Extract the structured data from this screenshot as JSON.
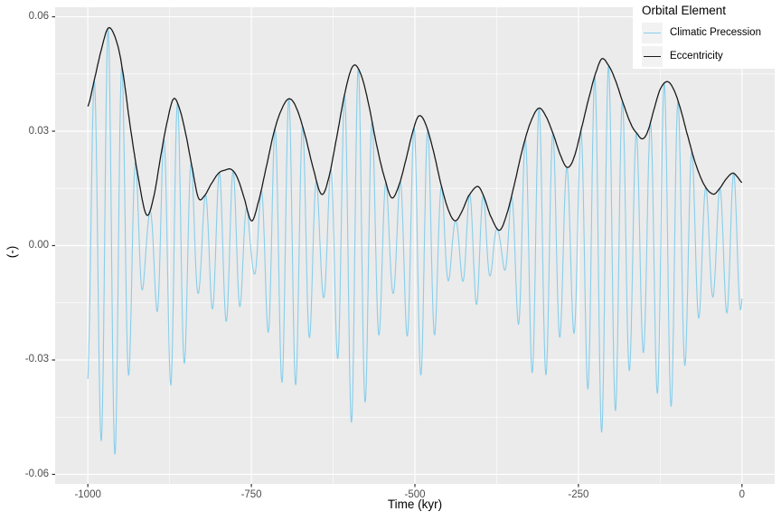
{
  "legend": {
    "title": "Orbital Element",
    "items": [
      {
        "label": "Climatic Precession",
        "color": "#87CEEB"
      },
      {
        "label": "Eccentricity",
        "color": "#1a1a1a"
      }
    ]
  },
  "axes": {
    "x": {
      "title": "Time (kyr)",
      "tick_labels": [
        "-1000",
        "-750",
        "-500",
        "-250",
        "0"
      ],
      "tick_values": [
        -1000,
        -750,
        -500,
        -250,
        0
      ],
      "minor_tick_values": [
        -875,
        -625,
        -375,
        -125
      ],
      "range": [
        -1050,
        50
      ]
    },
    "y": {
      "title": "(-)",
      "tick_labels": [
        "0.06",
        "0.03",
        "0.00",
        "-0.03",
        "-0.06"
      ],
      "tick_values": [
        0.06,
        0.03,
        0,
        -0.03,
        -0.06
      ],
      "minor_tick_values": [
        0.045,
        0.015,
        -0.015,
        -0.045
      ],
      "range": [
        -0.0625,
        0.0625
      ]
    }
  },
  "colors": {
    "panel_background": "#EBEBEB",
    "grid_major": "#FFFFFF",
    "grid_minor": "#FFFFFF",
    "tick_mark": "#333333",
    "axis_text": "#4d4d4d",
    "precession_line": "#87CEEB",
    "eccentricity_line": "#1a1a1a",
    "legend_key_background": "#f2f2f2"
  },
  "chart_data": {
    "type": "line",
    "title": "",
    "xlabel": "Time (kyr)",
    "ylabel": "(-)",
    "xlim": [
      -1050,
      50
    ],
    "ylim": [
      -0.0625,
      0.0625
    ],
    "grid": true,
    "legend_position": "top-right-inside",
    "series": [
      {
        "name": "Climatic Precession",
        "color": "#87CEEB",
        "x_range_kyr": [
          -1000,
          0
        ],
        "derivation": "eccentricity_envelope(t) * sin(2*pi*t/period_kyr + phase_rad)",
        "period_kyr": 21.255,
        "phase_rad": -0.98,
        "amplitude_range": [
          -0.057,
          0.057
        ]
      },
      {
        "name": "Eccentricity",
        "color": "#1a1a1a",
        "points": [
          [
            -1000,
            0.0365
          ],
          [
            -990,
            0.0435
          ],
          [
            -980,
            0.051
          ],
          [
            -969,
            0.057
          ],
          [
            -958,
            0.0545
          ],
          [
            -948,
            0.047
          ],
          [
            -935,
            0.031
          ],
          [
            -922,
            0.017
          ],
          [
            -910,
            0.008
          ],
          [
            -899,
            0.013
          ],
          [
            -888,
            0.024
          ],
          [
            -878,
            0.033
          ],
          [
            -869,
            0.0385
          ],
          [
            -860,
            0.036
          ],
          [
            -850,
            0.029
          ],
          [
            -840,
            0.02
          ],
          [
            -831,
            0.0125
          ],
          [
            -822,
            0.013
          ],
          [
            -812,
            0.016
          ],
          [
            -800,
            0.019
          ],
          [
            -790,
            0.0198
          ],
          [
            -781,
            0.02
          ],
          [
            -772,
            0.018
          ],
          [
            -762,
            0.013
          ],
          [
            -750,
            0.0065
          ],
          [
            -740,
            0.011
          ],
          [
            -728,
            0.02
          ],
          [
            -715,
            0.03
          ],
          [
            -703,
            0.036
          ],
          [
            -692,
            0.0385
          ],
          [
            -681,
            0.036
          ],
          [
            -668,
            0.029
          ],
          [
            -655,
            0.02
          ],
          [
            -643,
            0.0135
          ],
          [
            -633,
            0.017
          ],
          [
            -620,
            0.028
          ],
          [
            -607,
            0.04
          ],
          [
            -595,
            0.047
          ],
          [
            -584,
            0.0455
          ],
          [
            -572,
            0.038
          ],
          [
            -558,
            0.026
          ],
          [
            -545,
            0.017
          ],
          [
            -535,
            0.0125
          ],
          [
            -524,
            0.016
          ],
          [
            -513,
            0.023
          ],
          [
            -503,
            0.03
          ],
          [
            -494,
            0.034
          ],
          [
            -484,
            0.032
          ],
          [
            -472,
            0.025
          ],
          [
            -460,
            0.016
          ],
          [
            -448,
            0.009
          ],
          [
            -438,
            0.0065
          ],
          [
            -428,
            0.009
          ],
          [
            -418,
            0.013
          ],
          [
            -404,
            0.0155
          ],
          [
            -395,
            0.013
          ],
          [
            -385,
            0.008
          ],
          [
            -371,
            0.004
          ],
          [
            -360,
            0.008
          ],
          [
            -348,
            0.016
          ],
          [
            -336,
            0.025
          ],
          [
            -324,
            0.032
          ],
          [
            -311,
            0.036
          ],
          [
            -300,
            0.034
          ],
          [
            -288,
            0.029
          ],
          [
            -277,
            0.0235
          ],
          [
            -267,
            0.0205
          ],
          [
            -257,
            0.023
          ],
          [
            -245,
            0.031
          ],
          [
            -232,
            0.04
          ],
          [
            -222,
            0.046
          ],
          [
            -214,
            0.049
          ],
          [
            -205,
            0.0475
          ],
          [
            -195,
            0.044
          ],
          [
            -183,
            0.038
          ],
          [
            -170,
            0.032
          ],
          [
            -160,
            0.0293
          ],
          [
            -152,
            0.028
          ],
          [
            -144,
            0.03
          ],
          [
            -134,
            0.036
          ],
          [
            -125,
            0.041
          ],
          [
            -115,
            0.043
          ],
          [
            -106,
            0.0415
          ],
          [
            -96,
            0.037
          ],
          [
            -85,
            0.03
          ],
          [
            -72,
            0.022
          ],
          [
            -58,
            0.016
          ],
          [
            -44,
            0.0135
          ],
          [
            -34,
            0.015
          ],
          [
            -24,
            0.0175
          ],
          [
            -14,
            0.019
          ],
          [
            -7,
            0.018
          ],
          [
            0,
            0.0165
          ]
        ]
      }
    ]
  }
}
